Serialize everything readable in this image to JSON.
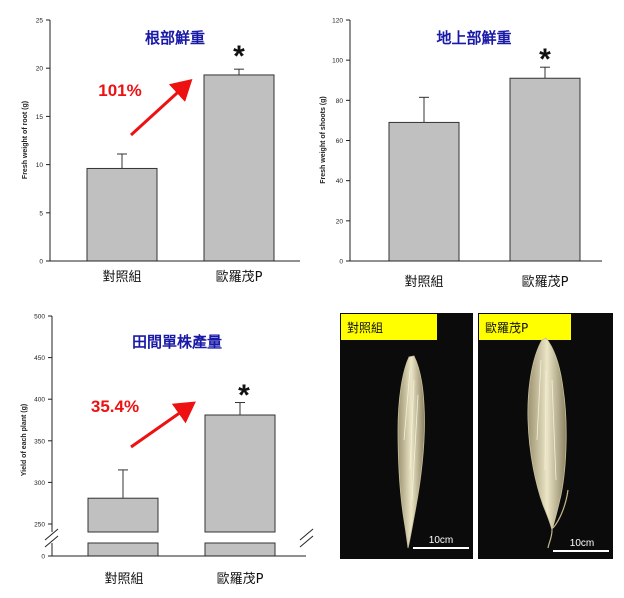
{
  "chart_data": [
    {
      "type": "bar",
      "title": "根部鮮重",
      "ylabel": "Fresh weight of root (g)",
      "categories": [
        "對照組",
        "歐羅茂P"
      ],
      "values": [
        9.6,
        19.3
      ],
      "errors": [
        1.5,
        0.6
      ],
      "ylim": [
        0,
        25
      ],
      "yticks": [
        0,
        5,
        10,
        15,
        20,
        25
      ],
      "annotation": "101%",
      "significance": "*"
    },
    {
      "type": "bar",
      "title": "地上部鮮重",
      "ylabel": "Fresh weight of shoots (g)",
      "categories": [
        "對照組",
        "歐羅茂P"
      ],
      "values": [
        69,
        91
      ],
      "errors": [
        12.5,
        5.5
      ],
      "ylim": [
        0,
        120
      ],
      "yticks": [
        0,
        20,
        40,
        60,
        80,
        100,
        120
      ],
      "significance": "*"
    },
    {
      "type": "bar",
      "title": "田間單株產量",
      "ylabel": "Yield of each plant (g)",
      "categories": [
        "對照組",
        "歐羅茂P"
      ],
      "values": [
        281,
        381
      ],
      "errors": [
        34,
        15
      ],
      "ylim": [
        0,
        500
      ],
      "axis_break": true,
      "yticks": [
        0,
        250,
        300,
        350,
        400,
        450,
        500
      ],
      "annotation": "35.4%",
      "significance": "*"
    }
  ],
  "photo_panel": {
    "labels": [
      "對照組",
      "歐羅茂P"
    ],
    "scale_bar": "10cm",
    "label_bg": "#ffff00"
  },
  "colors": {
    "bar": "#c0c0c0",
    "bar_edge": "#333333",
    "arrow": "#ee1111",
    "percent": "#ee1111",
    "title": "#1a1aa8"
  }
}
